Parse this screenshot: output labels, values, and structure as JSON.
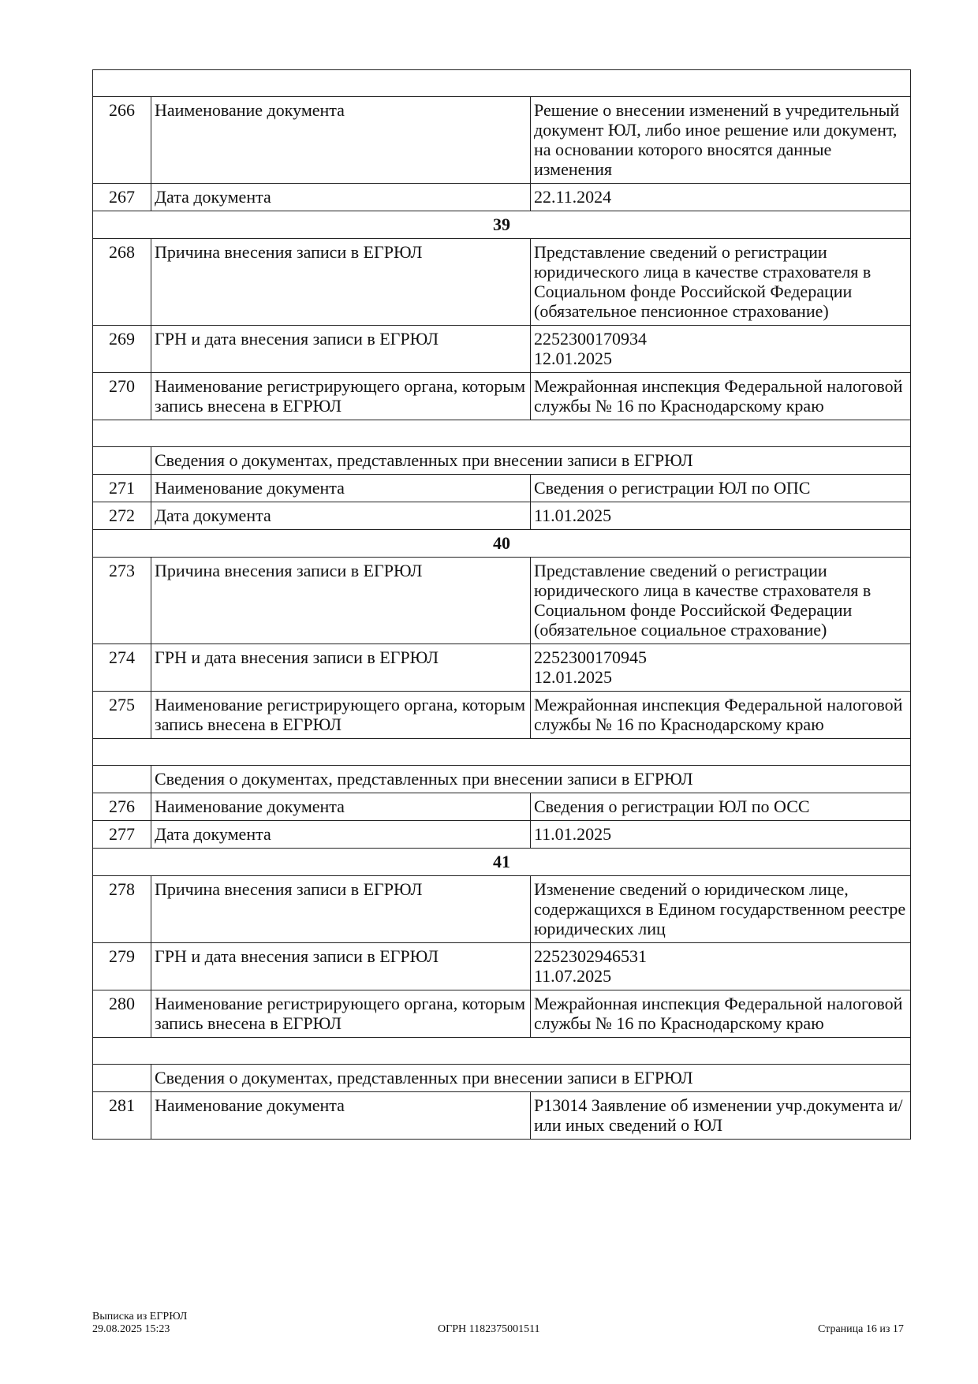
{
  "rows": [
    {
      "type": "blank"
    },
    {
      "type": "row",
      "num": "266",
      "label": "Наименование документа",
      "value": "Решение о внесении изменений в учредительный документ ЮЛ, либо иное решение или документ, на основании которого вносятся данные изменения"
    },
    {
      "type": "row",
      "num": "267",
      "label": "Дата документа",
      "value": "22.11.2024"
    },
    {
      "type": "section",
      "title": "39"
    },
    {
      "type": "row",
      "num": "268",
      "label": "Причина внесения записи в ЕГРЮЛ",
      "value": "Представление сведений о регистрации юридического лица в качестве страхователя в Социальном фонде Российской Федерации (обязательное пенсионное страхование)"
    },
    {
      "type": "row",
      "num": "269",
      "label": "ГРН и дата внесения записи в ЕГРЮЛ",
      "value": "2252300170934\n12.01.2025"
    },
    {
      "type": "row",
      "num": "270",
      "label": "Наименование регистрирующего органа, которым запись внесена в ЕГРЮЛ",
      "value": "Межрайонная инспекция Федеральной налоговой службы № 16 по Краснодарскому краю"
    },
    {
      "type": "blank"
    },
    {
      "type": "subheader",
      "title": "Сведения о документах, представленных при внесении записи в ЕГРЮЛ"
    },
    {
      "type": "row",
      "num": "271",
      "label": "Наименование документа",
      "value": "Сведения о регистрации ЮЛ по ОПС"
    },
    {
      "type": "row",
      "num": "272",
      "label": "Дата документа",
      "value": "11.01.2025"
    },
    {
      "type": "section",
      "title": "40"
    },
    {
      "type": "row",
      "num": "273",
      "label": "Причина внесения записи в ЕГРЮЛ",
      "value": "Представление сведений о регистрации юридического лица в качестве страхователя в Социальном фонде Российской Федерации (обязательное социальное страхование)"
    },
    {
      "type": "row",
      "num": "274",
      "label": "ГРН и дата внесения записи в ЕГРЮЛ",
      "value": "2252300170945\n12.01.2025"
    },
    {
      "type": "row",
      "num": "275",
      "label": "Наименование регистрирующего органа, которым запись внесена в ЕГРЮЛ",
      "value": "Межрайонная инспекция Федеральной налоговой службы № 16 по Краснодарскому краю"
    },
    {
      "type": "blank"
    },
    {
      "type": "subheader",
      "title": "Сведения о документах, представленных при внесении записи в ЕГРЮЛ"
    },
    {
      "type": "row",
      "num": "276",
      "label": "Наименование документа",
      "value": "Сведения о регистрации ЮЛ по ОСС"
    },
    {
      "type": "row",
      "num": "277",
      "label": "Дата документа",
      "value": "11.01.2025"
    },
    {
      "type": "section",
      "title": "41"
    },
    {
      "type": "row",
      "num": "278",
      "label": "Причина внесения записи в ЕГРЮЛ",
      "value": "Изменение сведений о юридическом лице, содержащихся в Едином государственном реестре юридических лиц"
    },
    {
      "type": "row",
      "num": "279",
      "label": "ГРН и дата внесения записи в ЕГРЮЛ",
      "value": "2252302946531\n11.07.2025"
    },
    {
      "type": "row",
      "num": "280",
      "label": "Наименование регистрирующего органа, которым запись внесена в ЕГРЮЛ",
      "value": "Межрайонная инспекция Федеральной налоговой службы № 16 по Краснодарскому краю"
    },
    {
      "type": "blank"
    },
    {
      "type": "subheader",
      "title": "Сведения о документах, представленных при внесении записи в ЕГРЮЛ"
    },
    {
      "type": "row",
      "num": "281",
      "label": "Наименование документа",
      "value": "Р13014 Заявление об изменении учр.документа и/или иных сведений о ЮЛ"
    }
  ],
  "footer": {
    "doc_title": "Выписка из ЕГРЮЛ",
    "datetime": "29.08.2025 15:23",
    "ogrn": "ОГРН 1182375001511",
    "page": "Страница 16 из 17"
  }
}
